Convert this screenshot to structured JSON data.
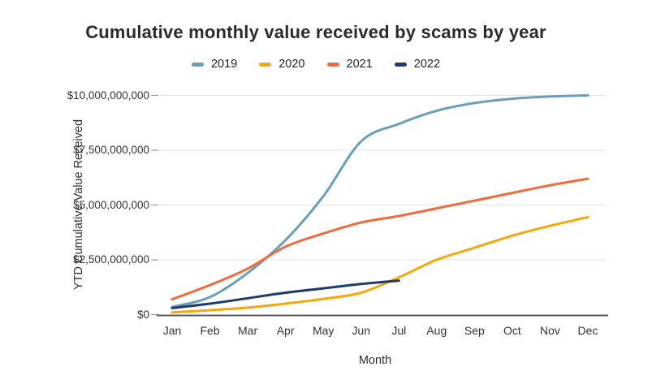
{
  "title": "Cumulative monthly value received by scams by year",
  "axes": {
    "xlabel": "Month",
    "ylabel": "YTD Cumulative Value Received",
    "yticks": [
      {
        "value": 0,
        "label": "$0"
      },
      {
        "value": 2500000000,
        "label": "$2,500,000,000"
      },
      {
        "value": 5000000000,
        "label": "$5,000,000,000"
      },
      {
        "value": 7500000000,
        "label": "$7,500,000,000"
      },
      {
        "value": 10000000000,
        "label": "$10,000,000,000"
      }
    ]
  },
  "chart_data": {
    "type": "line",
    "title": "Cumulative monthly value received by scams by year",
    "xlabel": "Month",
    "ylabel": "YTD Cumulative Value Received",
    "categories": [
      "Jan",
      "Feb",
      "Mar",
      "Apr",
      "May",
      "Jun",
      "Jul",
      "Aug",
      "Sep",
      "Oct",
      "Nov",
      "Dec"
    ],
    "ylim": [
      0,
      10000000000
    ],
    "grid": true,
    "legend_position": "top",
    "series": [
      {
        "name": "2019",
        "color": "#699FB8",
        "values": [
          350000000,
          800000000,
          1900000000,
          3400000000,
          5400000000,
          7900000000,
          8700000000,
          9300000000,
          9650000000,
          9850000000,
          9950000000,
          10000000000
        ]
      },
      {
        "name": "2020",
        "color": "#F5A80D",
        "values": [
          100000000,
          200000000,
          320000000,
          500000000,
          720000000,
          1000000000,
          1700000000,
          2500000000,
          3050000000,
          3600000000,
          4050000000,
          4450000000
        ]
      },
      {
        "name": "2021",
        "color": "#EF6B3D",
        "values": [
          700000000,
          1350000000,
          2100000000,
          3100000000,
          3700000000,
          4200000000,
          4500000000,
          4850000000,
          5200000000,
          5550000000,
          5900000000,
          6200000000
        ]
      },
      {
        "name": "2022",
        "color": "#1F3A6D",
        "values": [
          300000000,
          500000000,
          750000000,
          1000000000,
          1200000000,
          1400000000,
          1550000000,
          null,
          null,
          null,
          null,
          null
        ]
      }
    ]
  },
  "colors": {
    "grid": "#e3e3e3",
    "axis": "#5a5a5e",
    "tick": "#9b9b9b"
  }
}
